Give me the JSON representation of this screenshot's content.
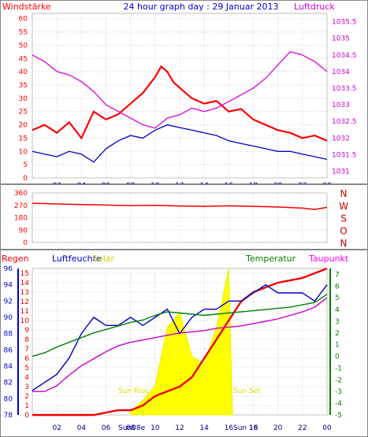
{
  "chart_data": [
    {
      "type": "line",
      "title": "24 hour graph day : 29 Januar 2013",
      "left_axis_label": "Windstärke",
      "right_axis_label": "Luftdruck",
      "x_ticks": [
        "02",
        "04",
        "06",
        "08",
        "10",
        "12",
        "14",
        "16",
        "18",
        "20",
        "22",
        "00"
      ],
      "x_range_hours": [
        0,
        24
      ],
      "y_left": {
        "ticks": [
          0,
          5,
          10,
          15,
          20,
          25,
          30,
          35,
          40,
          45,
          50,
          55,
          60
        ],
        "range": [
          0,
          62
        ]
      },
      "y_right": {
        "ticks": [
          "1031",
          "1031.5",
          "1032",
          "1032.5",
          "1033",
          "1033.5",
          "1034",
          "1034.5",
          "1035",
          "1035.5"
        ],
        "range": [
          1030.8,
          1035.75
        ]
      },
      "grid": true,
      "series": [
        {
          "name": "gust",
          "color": "#ff0000",
          "x": [
            0,
            1,
            2,
            3,
            4,
            5,
            6,
            7,
            8,
            9,
            10,
            10.5,
            11,
            11.5,
            12,
            13,
            14,
            15,
            16,
            17,
            18,
            19,
            20,
            21,
            22,
            23,
            24
          ],
          "y": [
            18,
            20,
            17,
            21,
            15,
            25,
            22,
            24,
            28,
            32,
            38,
            42,
            40,
            36,
            34,
            30,
            28,
            29,
            25,
            26,
            22,
            20,
            18,
            17,
            15,
            16,
            14
          ]
        },
        {
          "name": "mean",
          "color": "#0000cc",
          "x": [
            0,
            1,
            2,
            3,
            4,
            5,
            6,
            7,
            8,
            9,
            10,
            11,
            12,
            13,
            14,
            15,
            16,
            17,
            18,
            19,
            20,
            21,
            22,
            23,
            24
          ],
          "y": [
            10,
            9,
            8,
            10,
            9,
            6,
            11,
            14,
            16,
            15,
            18,
            20,
            19,
            18,
            17,
            16,
            14,
            13,
            12,
            11,
            10,
            10,
            9,
            8,
            7
          ]
        },
        {
          "name": "pressure",
          "color": "#dd00dd",
          "axis": "right",
          "x": [
            0,
            1,
            2,
            3,
            4,
            5,
            6,
            7,
            8,
            9,
            10,
            11,
            12,
            13,
            14,
            15,
            16,
            17,
            18,
            19,
            20,
            21,
            22,
            23,
            24
          ],
          "y": [
            1034.5,
            1034.3,
            1034.0,
            1033.9,
            1033.7,
            1033.4,
            1033.0,
            1032.8,
            1032.6,
            1032.4,
            1032.3,
            1032.6,
            1032.7,
            1032.9,
            1032.8,
            1032.9,
            1033.1,
            1033.3,
            1033.5,
            1033.8,
            1034.2,
            1034.6,
            1034.5,
            1034.3,
            1034.0
          ]
        }
      ]
    },
    {
      "type": "line",
      "y_ticks": [
        0,
        90,
        180,
        270,
        360
      ],
      "y_range": [
        0,
        360
      ],
      "compass_labels": [
        "N",
        "W",
        "S",
        "O",
        "N"
      ],
      "grid": true,
      "series": [
        {
          "name": "direction",
          "color": "#ff0000",
          "x": [
            0,
            2,
            4,
            6,
            8,
            10,
            12,
            14,
            16,
            18,
            20,
            22,
            23,
            24
          ],
          "y": [
            285,
            280,
            276,
            272,
            268,
            270,
            265,
            262,
            266,
            262,
            258,
            250,
            240,
            255
          ]
        }
      ]
    },
    {
      "type": "line",
      "labels": {
        "rain": "Regen",
        "humidity": "Luftfeuchte",
        "solar": "Solar",
        "temperature": "Temperatur",
        "dewpoint": "Taupunkt"
      },
      "left_outer_axis": {
        "ticks": [
          78,
          80,
          82,
          84,
          86,
          88,
          90,
          92,
          94,
          96
        ],
        "range": [
          78,
          96
        ]
      },
      "left_inner_axis": {
        "ticks": [
          0,
          1,
          2,
          3,
          4,
          5,
          6,
          7,
          8,
          9,
          10,
          11,
          12,
          13,
          14,
          15
        ],
        "range": [
          0,
          15.5
        ]
      },
      "right_axis": {
        "ticks": [
          -5,
          -4,
          -3,
          -2,
          -1,
          0,
          1,
          2,
          3,
          4,
          5,
          6,
          7
        ],
        "range": [
          -5,
          7.5
        ]
      },
      "x_ticks": [
        "02",
        "04",
        "06",
        "08",
        "10",
        "12",
        "14",
        "16",
        "18",
        "20",
        "22",
        "00"
      ],
      "annotations": [
        "Sun Rise",
        "Sun Set",
        "Sun08e",
        "Sun 16"
      ],
      "grid": true,
      "series": [
        {
          "name": "Regen",
          "color": "#ee0000",
          "x": [
            0,
            5,
            7,
            8,
            9,
            10,
            11,
            12,
            13,
            14,
            15,
            16,
            17,
            18,
            19,
            20,
            22,
            23,
            24
          ],
          "y": [
            0,
            0,
            0.5,
            0.5,
            1,
            2,
            2.5,
            3,
            4,
            6,
            8,
            10,
            12,
            13,
            13.5,
            14,
            14.5,
            15,
            15.5
          ]
        },
        {
          "name": "Luftfeuchte",
          "color": "#0000cc",
          "x": [
            0,
            1,
            2,
            3,
            4,
            5,
            6,
            7,
            8,
            9,
            10,
            11,
            12,
            13,
            14,
            15,
            16,
            17,
            18,
            19,
            20,
            21,
            22,
            23,
            24
          ],
          "y": [
            81,
            82,
            83,
            85,
            88,
            90,
            89,
            89,
            90,
            89,
            90,
            91,
            88,
            90,
            91,
            91,
            92,
            92,
            93,
            94,
            93,
            93,
            93,
            92,
            94
          ]
        },
        {
          "name": "Temperatur",
          "color": "#008000",
          "x": [
            0,
            1,
            2,
            3,
            4,
            5,
            6,
            7,
            8,
            9,
            10,
            11,
            12,
            13,
            14,
            15,
            16,
            17,
            18,
            19,
            20,
            21,
            22,
            23,
            24
          ],
          "y": [
            0,
            0.3,
            0.8,
            1.2,
            1.6,
            2,
            2.3,
            2.6,
            2.9,
            3.1,
            3.5,
            3.8,
            3.7,
            3.6,
            3.5,
            3.6,
            3.7,
            3.8,
            3.9,
            4,
            4.1,
            4.2,
            4.4,
            4.6,
            5.3
          ]
        },
        {
          "name": "Taupunkt",
          "color": "#cc00cc",
          "x": [
            0,
            1,
            2,
            3,
            4,
            5,
            6,
            7,
            8,
            9,
            10,
            11,
            12,
            13,
            14,
            15,
            16,
            17,
            18,
            19,
            20,
            21,
            22,
            23,
            24
          ],
          "y": [
            -3,
            -3,
            -2.5,
            -1.6,
            -0.8,
            -0.2,
            0.4,
            0.9,
            1.2,
            1.4,
            1.6,
            1.8,
            2,
            2.1,
            2.2,
            2.4,
            2.5,
            2.6,
            2.8,
            3,
            3.2,
            3.5,
            3.8,
            4.2,
            5
          ]
        },
        {
          "name": "Solar",
          "color": "#ffff00",
          "axis": "solar",
          "x": [
            8,
            9,
            10,
            11,
            12,
            13,
            14,
            15,
            16,
            16.3
          ],
          "y": [
            2,
            10,
            20,
            60,
            70,
            40,
            35,
            60,
            100,
            0
          ]
        }
      ]
    }
  ]
}
